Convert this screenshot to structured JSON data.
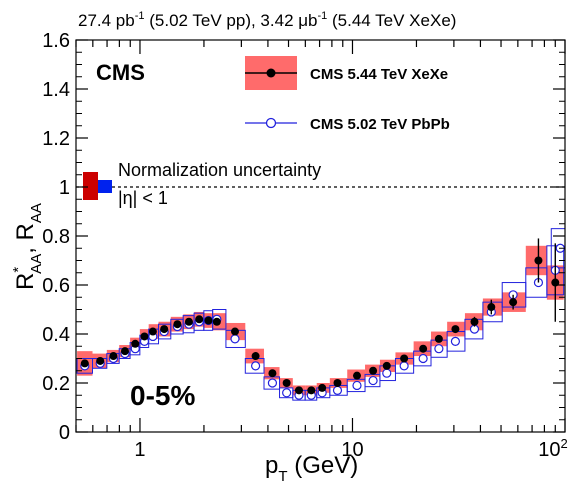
{
  "chart_data": {
    "type": "scatter",
    "title": "27.4 pb⁻¹ (5.02 TeV pp), 3.42 μb⁻¹ (5.44 TeV XeXe)",
    "title_parts": {
      "a": "27.4 pb",
      "a_sup": "-1",
      "b": " (5.02 TeV pp), 3.42 μb",
      "b_sup": "-1",
      "c": " (5.44 TeV XeXe)"
    },
    "experiment": "CMS",
    "centrality": "0-5%",
    "eta_label": "|η| < 1",
    "norm_label": "Normalization uncertainty",
    "xlabel": {
      "main": "p",
      "sub": "T",
      "unit": " (GeV)"
    },
    "ylabel": {
      "r1": "R",
      "sup": "*",
      "sub1": "AA",
      "sep": ", R",
      "sub2": "AA"
    },
    "xscale": "log",
    "xlim": [
      0.5,
      100
    ],
    "ylim": [
      0,
      1.6
    ],
    "yticks": [
      "0",
      "0.2",
      "0.4",
      "0.6",
      "0.8",
      "1",
      "1.2",
      "1.4",
      "1.6"
    ],
    "xticks": [
      "1",
      "10",
      "10"
    ],
    "xtick_sup": "2",
    "reference_line": 1,
    "legend_position": "top-right",
    "series": [
      {
        "name": "CMS 5.44 TeV XeXe",
        "marker": "filled-circle",
        "color": "#000000",
        "syst_color": "#ff6b6b",
        "x": [
          0.55,
          0.65,
          0.75,
          0.85,
          0.95,
          1.05,
          1.15,
          1.3,
          1.5,
          1.7,
          1.9,
          2.1,
          2.3,
          2.8,
          3.5,
          4.2,
          4.9,
          5.6,
          6.4,
          7.2,
          8.5,
          10.5,
          12.5,
          14.5,
          17.5,
          21.5,
          25.5,
          30.5,
          37.5,
          45,
          57,
          75,
          90
        ],
        "y": [
          0.28,
          0.29,
          0.31,
          0.33,
          0.36,
          0.39,
          0.41,
          0.42,
          0.44,
          0.45,
          0.46,
          0.455,
          0.45,
          0.41,
          0.31,
          0.24,
          0.2,
          0.17,
          0.17,
          0.18,
          0.2,
          0.23,
          0.25,
          0.27,
          0.3,
          0.34,
          0.38,
          0.42,
          0.45,
          0.51,
          0.53,
          0.7,
          0.61
        ],
        "syst": [
          0.05,
          0.03,
          0.025,
          0.025,
          0.025,
          0.03,
          0.03,
          0.03,
          0.03,
          0.03,
          0.03,
          0.03,
          0.035,
          0.035,
          0.03,
          0.025,
          0.02,
          0.02,
          0.02,
          0.02,
          0.02,
          0.025,
          0.025,
          0.025,
          0.025,
          0.03,
          0.03,
          0.03,
          0.035,
          0.035,
          0.04,
          0.06,
          0.07
        ],
        "stat": [
          0,
          0,
          0,
          0,
          0,
          0,
          0,
          0,
          0,
          0,
          0,
          0,
          0,
          0,
          0,
          0,
          0,
          0,
          0,
          0,
          0,
          0,
          0,
          0,
          0,
          0,
          0,
          0,
          0.02,
          0.03,
          0.03,
          0.09,
          0.16
        ]
      },
      {
        "name": "CMS 5.02 TeV PbPb",
        "marker": "open-circle",
        "color": "#2222dd",
        "x": [
          0.55,
          0.65,
          0.75,
          0.85,
          0.95,
          1.05,
          1.15,
          1.3,
          1.5,
          1.7,
          1.9,
          2.1,
          2.3,
          2.8,
          3.5,
          4.2,
          4.9,
          5.6,
          6.4,
          7.2,
          8.5,
          10.5,
          12.5,
          14.5,
          17.5,
          21.5,
          25.5,
          30.5,
          37.5,
          45,
          57,
          75,
          90
        ],
        "y": [
          0.27,
          0.28,
          0.3,
          0.32,
          0.34,
          0.37,
          0.39,
          0.41,
          0.43,
          0.44,
          0.45,
          0.455,
          0.46,
          0.38,
          0.27,
          0.2,
          0.16,
          0.15,
          0.15,
          0.16,
          0.17,
          0.19,
          0.21,
          0.24,
          0.27,
          0.3,
          0.34,
          0.37,
          0.42,
          0.49,
          0.56,
          0.61,
          0.66
        ],
        "syst": [
          0.03,
          0.02,
          0.02,
          0.02,
          0.025,
          0.025,
          0.03,
          0.03,
          0.03,
          0.035,
          0.035,
          0.04,
          0.04,
          0.035,
          0.03,
          0.025,
          0.02,
          0.02,
          0.02,
          0.02,
          0.02,
          0.025,
          0.025,
          0.03,
          0.03,
          0.03,
          0.035,
          0.04,
          0.04,
          0.04,
          0.05,
          0.06,
          0.1
        ]
      }
    ]
  },
  "extra_marker": {
    "x": 95,
    "y": 0.75,
    "syst": 0.08
  }
}
